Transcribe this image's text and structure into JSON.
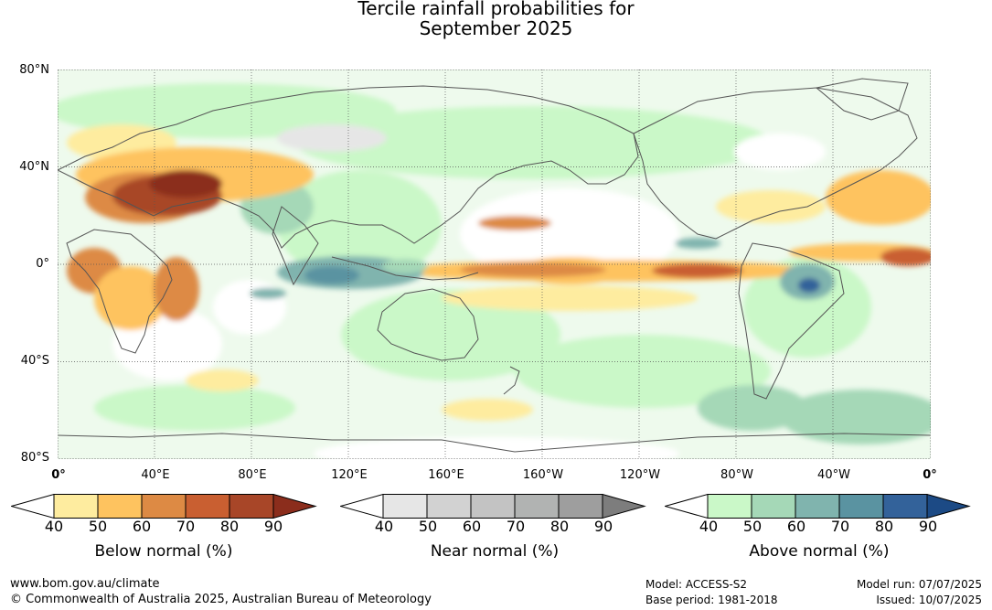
{
  "title": {
    "line1": "Tercile rainfall probabilities for",
    "line2": "September 2025"
  },
  "map": {
    "latitude_labels": [
      "80°N",
      "40°N",
      "0°",
      "40°S",
      "80°S"
    ],
    "longitude_labels": [
      "0°",
      "40°E",
      "80°E",
      "120°E",
      "160°E",
      "160°W",
      "120°W",
      "80°W",
      "40°W",
      "0°"
    ]
  },
  "colorbars": [
    {
      "label": "Below normal (%)",
      "ticks": [
        "40",
        "50",
        "60",
        "70",
        "80",
        "90"
      ],
      "colors": [
        "#ffffff",
        "#feec9f",
        "#fec35f",
        "#dd8a44",
        "#c95f31",
        "#a84628",
        "#8b2d1c"
      ]
    },
    {
      "label": "Near normal (%)",
      "ticks": [
        "40",
        "50",
        "60",
        "70",
        "80",
        "90"
      ],
      "colors": [
        "#ffffff",
        "#e6e6e6",
        "#d2d2d2",
        "#c3c3c3",
        "#b1b3b2",
        "#9e9e9e",
        "#7d7d7d"
      ]
    },
    {
      "label": "Above normal (%)",
      "ticks": [
        "40",
        "50",
        "60",
        "70",
        "80",
        "90"
      ],
      "colors": [
        "#ffffff",
        "#caf8c8",
        "#a5d8b7",
        "#80b4ae",
        "#5a93a1",
        "#33629a",
        "#1c4a85"
      ]
    }
  ],
  "footer": {
    "url": "www.bom.gov.au/climate",
    "copyright": "© Commonwealth of Australia 2025, Australian Bureau of Meteorology",
    "model": "Model: ACCESS-S2",
    "base_period": "Base period: 1981-2018",
    "model_run": "Model run: 07/07/2025",
    "issued": "Issued: 10/07/2025"
  }
}
